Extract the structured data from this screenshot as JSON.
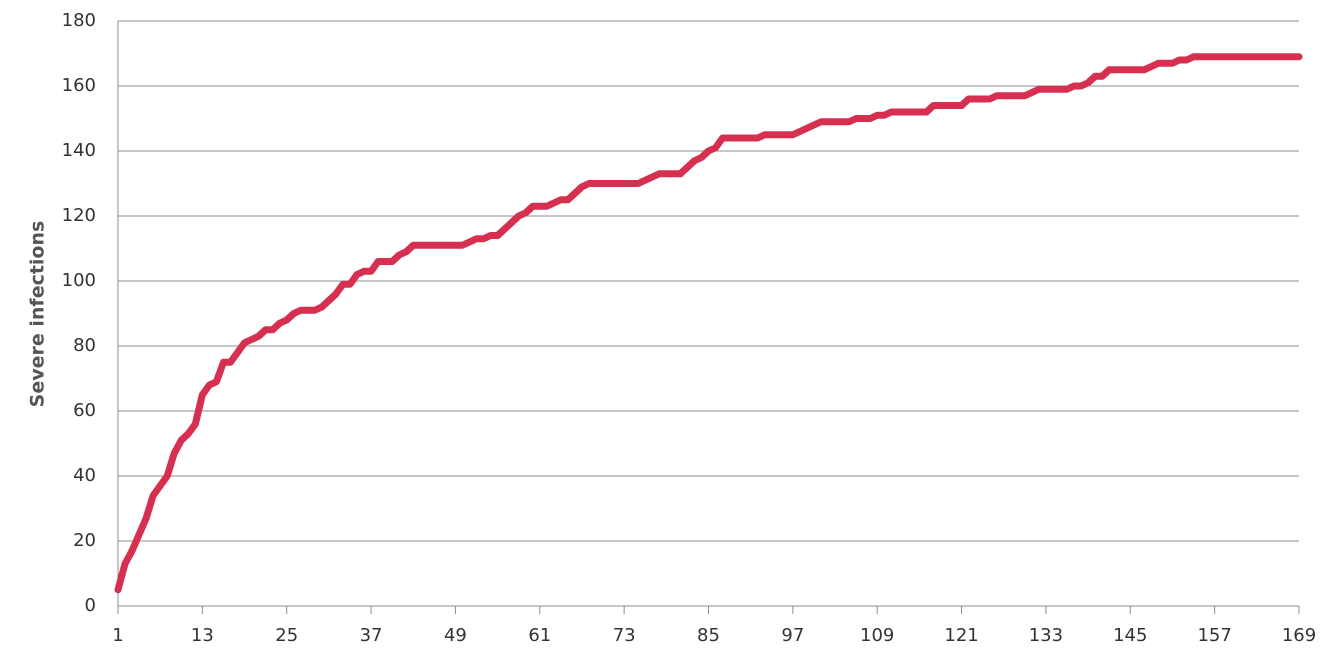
{
  "chart_data": {
    "type": "line",
    "y_label": "Severe infections",
    "x": [
      1,
      2,
      3,
      4,
      5,
      6,
      7,
      8,
      9,
      10,
      11,
      12,
      13,
      14,
      15,
      16,
      17,
      18,
      19,
      20,
      21,
      22,
      23,
      24,
      25,
      26,
      27,
      28,
      29,
      30,
      31,
      32,
      33,
      34,
      35,
      36,
      37,
      38,
      39,
      40,
      41,
      42,
      43,
      44,
      45,
      46,
      47,
      48,
      49,
      50,
      51,
      52,
      53,
      54,
      55,
      56,
      57,
      58,
      59,
      60,
      61,
      62,
      63,
      64,
      65,
      66,
      67,
      68,
      69,
      70,
      71,
      72,
      73,
      74,
      75,
      76,
      77,
      78,
      79,
      80,
      81,
      82,
      83,
      84,
      85,
      86,
      87,
      88,
      89,
      90,
      91,
      92,
      93,
      94,
      95,
      96,
      97,
      98,
      99,
      100,
      101,
      102,
      103,
      104,
      105,
      106,
      107,
      108,
      109,
      110,
      111,
      112,
      113,
      114,
      115,
      116,
      117,
      118,
      119,
      120,
      121,
      122,
      123,
      124,
      125,
      126,
      127,
      128,
      129,
      130,
      131,
      132,
      133,
      134,
      135,
      136,
      137,
      138,
      139,
      140,
      141,
      142,
      143,
      144,
      145,
      146,
      147,
      148,
      149,
      150,
      151,
      152,
      153,
      154,
      155,
      156,
      157,
      158,
      159,
      160,
      161,
      162,
      163,
      164,
      165,
      166,
      167,
      168,
      169
    ],
    "series": [
      {
        "color": "#d62f50",
        "values": [
          5,
          13,
          17,
          22,
          27,
          34,
          37,
          40,
          47,
          51,
          53,
          56,
          65,
          68,
          69,
          75,
          75,
          78,
          81,
          82,
          83,
          85,
          85,
          87,
          88,
          90,
          91,
          91,
          91,
          92,
          94,
          96,
          99,
          99,
          102,
          103,
          103,
          106,
          106,
          106,
          108,
          109,
          111,
          111,
          111,
          111,
          111,
          111,
          111,
          111,
          112,
          113,
          113,
          114,
          114,
          116,
          118,
          120,
          121,
          123,
          123,
          123,
          124,
          125,
          125,
          127,
          129,
          130,
          130,
          130,
          130,
          130,
          130,
          130,
          130,
          131,
          132,
          133,
          133,
          133,
          133,
          135,
          137,
          138,
          140,
          141,
          144,
          144,
          144,
          144,
          144,
          144,
          145,
          145,
          145,
          145,
          145,
          146,
          147,
          148,
          149,
          149,
          149,
          149,
          149,
          150,
          150,
          150,
          151,
          151,
          152,
          152,
          152,
          152,
          152,
          152,
          154,
          154,
          154,
          154,
          154,
          156,
          156,
          156,
          156,
          157,
          157,
          157,
          157,
          157,
          158,
          159,
          159,
          159,
          159,
          159,
          160,
          160,
          161,
          163,
          163,
          165,
          165,
          165,
          165,
          165,
          165,
          166,
          167,
          167,
          167,
          168,
          168,
          169,
          169,
          169,
          169,
          169,
          169,
          169,
          169,
          169,
          169,
          169,
          169,
          169,
          169,
          169,
          169
        ]
      }
    ],
    "xlim": [
      1,
      169
    ],
    "xticks": [
      1,
      13,
      25,
      37,
      49,
      61,
      73,
      85,
      97,
      109,
      121,
      133,
      145,
      157,
      169
    ],
    "ylim": [
      0,
      180
    ],
    "yticks": [
      0,
      20,
      40,
      60,
      80,
      100,
      120,
      140,
      160,
      180
    ],
    "grid": true
  }
}
